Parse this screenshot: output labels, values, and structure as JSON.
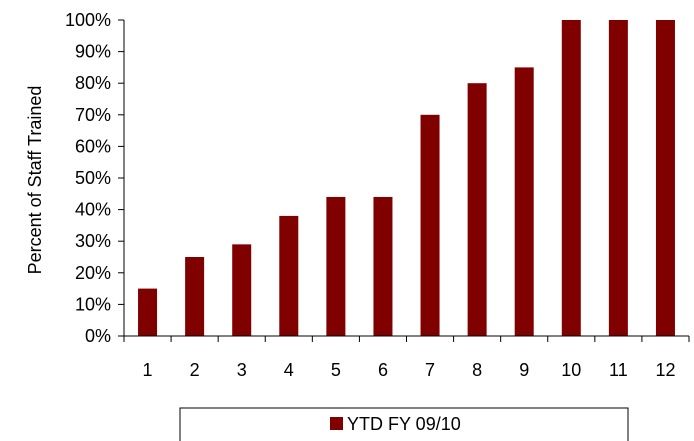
{
  "chart_data": {
    "type": "bar",
    "categories": [
      "1",
      "2",
      "3",
      "4",
      "5",
      "6",
      "7",
      "8",
      "9",
      "10",
      "11",
      "12"
    ],
    "series": [
      {
        "name": "YTD FY 09/10",
        "values": [
          15,
          25,
          29,
          38,
          44,
          44,
          70,
          80,
          85,
          100,
          100,
          100
        ]
      }
    ],
    "ylabel": "Percent of Staff Trained",
    "xlabel": "",
    "ylim": [
      0,
      100
    ],
    "y_ticks": [
      "0%",
      "10%",
      "20%",
      "30%",
      "40%",
      "50%",
      "60%",
      "70%",
      "80%",
      "90%",
      "100%"
    ],
    "bar_color": "#800000",
    "grid": false,
    "legend_position": "bottom"
  }
}
